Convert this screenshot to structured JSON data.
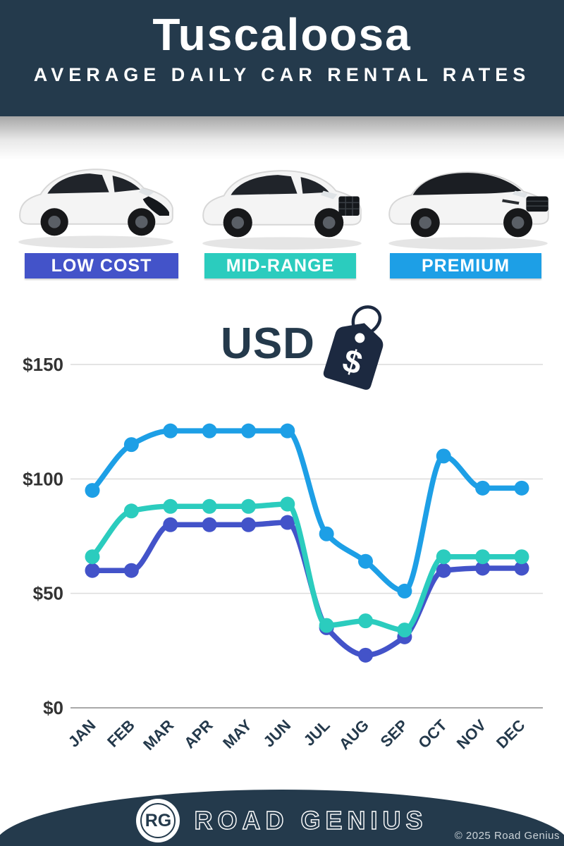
{
  "header": {
    "title": "Tuscaloosa",
    "subtitle": "AVERAGE DAILY CAR RENTAL RATES"
  },
  "categories": [
    {
      "label": "LOW COST",
      "color": "#4353c9",
      "car": "hatchback-car"
    },
    {
      "label": "MID-RANGE",
      "color": "#2bccbe",
      "car": "midsize-suv-car"
    },
    {
      "label": "PREMIUM",
      "color": "#1d9fe6",
      "car": "premium-suv-car"
    }
  ],
  "currency": {
    "label": "USD",
    "tag_icon": "price-tag-icon",
    "tag_symbol": "$"
  },
  "chart_data": {
    "type": "line",
    "categories": [
      "JAN",
      "FEB",
      "MAR",
      "APR",
      "MAY",
      "JUN",
      "JUL",
      "AUG",
      "SEP",
      "OCT",
      "NOV",
      "DEC"
    ],
    "series": [
      {
        "name": "LOW COST",
        "color": "#4353c9",
        "values": [
          60,
          60,
          80,
          80,
          80,
          81,
          35,
          23,
          31,
          60,
          61,
          61
        ]
      },
      {
        "name": "MID-RANGE",
        "color": "#2bccbe",
        "values": [
          66,
          86,
          88,
          88,
          88,
          89,
          36,
          38,
          34,
          66,
          66,
          66
        ]
      },
      {
        "name": "PREMIUM",
        "color": "#1d9fe6",
        "values": [
          95,
          115,
          121,
          121,
          121,
          121,
          76,
          64,
          51,
          110,
          96,
          96
        ]
      }
    ],
    "y_ticks": [
      "$0",
      "$50",
      "$100",
      "$150"
    ],
    "ylim": [
      0,
      150
    ],
    "xlabel": "",
    "ylabel": "",
    "grid": true,
    "legend_position": "none",
    "currency": "USD"
  },
  "footer": {
    "logo": "RG",
    "brand": "ROAD GENIUS",
    "copyright": "© 2025 Road Genius"
  }
}
